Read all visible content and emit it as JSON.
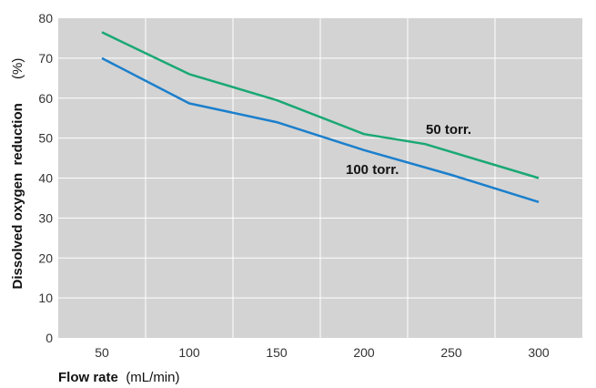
{
  "chart_data": {
    "type": "line",
    "xlabel": "Flow rate",
    "xlabel_unit": "(mL/min)",
    "ylabel": "Dissolved oxygen  reduction",
    "ylabel_unit": "(%)",
    "xlim": [
      25,
      325
    ],
    "ylim": [
      0,
      80
    ],
    "xticks": [
      50,
      100,
      150,
      200,
      250,
      300
    ],
    "yticks": [
      0,
      10,
      20,
      30,
      40,
      50,
      60,
      70,
      80
    ],
    "grid": true,
    "background_color": "#d3d3d3",
    "grid_color": "#ffffff",
    "series": [
      {
        "name": "50 torr.",
        "color": "#1aa874",
        "x": [
          50,
          100,
          150,
          200,
          235,
          300
        ],
        "y": [
          76.5,
          66,
          59.5,
          51,
          48.5,
          40
        ]
      },
      {
        "name": "100 torr.",
        "color": "#1b7fcc",
        "x": [
          50,
          100,
          150,
          200,
          250,
          300
        ],
        "y": [
          70,
          58.7,
          54,
          47,
          40.8,
          34
        ]
      }
    ]
  }
}
